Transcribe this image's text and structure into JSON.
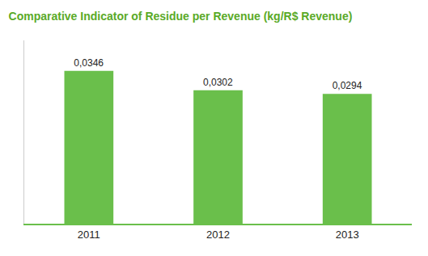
{
  "chart_data": {
    "type": "bar",
    "title": "Comparative Indicator of Residue per Revenue (kg/R$ Revenue)",
    "categories": [
      "2011",
      "2012",
      "2013"
    ],
    "values": [
      0.0346,
      0.0302,
      0.0294
    ],
    "value_labels": [
      "0,0346",
      "0,0302",
      "0,0294"
    ],
    "data_labels": true,
    "color": "#6abf4b",
    "ylim": [
      0.0,
      0.0415
    ],
    "grid": false,
    "tick_labels": "x"
  }
}
